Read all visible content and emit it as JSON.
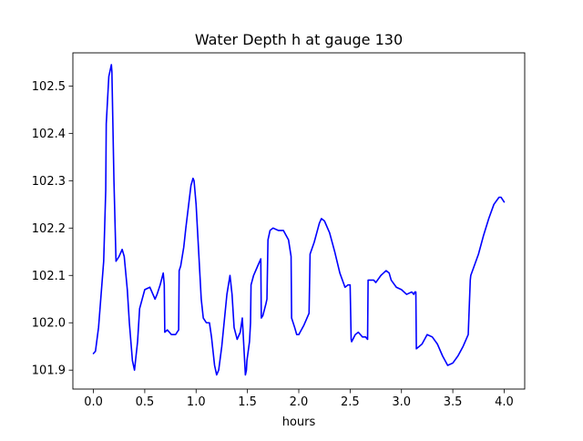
{
  "chart_data": {
    "type": "line",
    "title": "Water Depth h at gauge 130",
    "xlabel": "hours",
    "ylabel": "",
    "xlim": [
      -0.2,
      4.2
    ],
    "ylim": [
      101.86,
      102.57
    ],
    "grid": false,
    "xticks": [
      0.0,
      0.5,
      1.0,
      1.5,
      2.0,
      2.5,
      3.0,
      3.5,
      4.0
    ],
    "xtick_labels": [
      "0.0",
      "0.5",
      "1.0",
      "1.5",
      "2.0",
      "2.5",
      "3.0",
      "3.5",
      "4.0"
    ],
    "yticks": [
      101.9,
      102.0,
      102.1,
      102.2,
      102.3,
      102.4,
      102.5
    ],
    "ytick_labels": [
      "101.9",
      "102.0",
      "102.1",
      "102.2",
      "102.3",
      "102.4",
      "102.5"
    ],
    "series": [
      {
        "color": "#0000ff",
        "x": [
          0.0,
          0.02,
          0.05,
          0.1,
          0.12,
          0.125,
          0.15,
          0.175,
          0.18,
          0.2,
          0.22,
          0.25,
          0.28,
          0.3,
          0.33,
          0.35,
          0.38,
          0.4,
          0.43,
          0.45,
          0.5,
          0.55,
          0.6,
          0.62,
          0.65,
          0.68,
          0.69,
          0.695,
          0.72,
          0.76,
          0.8,
          0.83,
          0.835,
          0.85,
          0.88,
          0.9,
          0.95,
          0.97,
          0.98,
          1.0,
          1.02,
          1.05,
          1.07,
          1.1,
          1.13,
          1.15,
          1.18,
          1.2,
          1.22,
          1.25,
          1.3,
          1.33,
          1.35,
          1.37,
          1.4,
          1.43,
          1.45,
          1.48,
          1.49,
          1.495,
          1.52,
          1.53,
          1.535,
          1.56,
          1.6,
          1.62,
          1.63,
          1.635,
          1.65,
          1.68,
          1.69,
          1.7,
          1.72,
          1.75,
          1.8,
          1.85,
          1.9,
          1.925,
          1.93,
          1.96,
          1.98,
          2.0,
          2.05,
          2.1,
          2.11,
          2.15,
          2.2,
          2.22,
          2.25,
          2.3,
          2.35,
          2.4,
          2.45,
          2.48,
          2.5,
          2.51,
          2.515,
          2.55,
          2.58,
          2.62,
          2.65,
          2.67,
          2.675,
          2.7,
          2.73,
          2.75,
          2.8,
          2.85,
          2.88,
          2.9,
          2.95,
          3.0,
          3.05,
          3.1,
          3.12,
          3.13,
          3.14,
          3.145,
          3.2,
          3.25,
          3.3,
          3.35,
          3.4,
          3.45,
          3.5,
          3.55,
          3.6,
          3.65,
          3.67,
          3.675,
          3.7,
          3.75,
          3.8,
          3.85,
          3.9,
          3.95,
          3.97,
          4.0
        ],
        "values": [
          101.935,
          101.94,
          101.99,
          102.13,
          102.28,
          102.42,
          102.52,
          102.545,
          102.53,
          102.3,
          102.13,
          102.14,
          102.155,
          102.14,
          102.07,
          102.0,
          101.92,
          101.9,
          101.96,
          102.03,
          102.07,
          102.075,
          102.05,
          102.06,
          102.08,
          102.105,
          102.08,
          101.98,
          101.985,
          101.975,
          101.975,
          101.985,
          102.11,
          102.12,
          102.16,
          102.2,
          102.29,
          102.305,
          102.3,
          102.25,
          102.17,
          102.05,
          102.01,
          102.0,
          102.0,
          101.97,
          101.91,
          101.89,
          101.9,
          101.95,
          102.06,
          102.1,
          102.06,
          101.99,
          101.965,
          101.98,
          102.01,
          101.89,
          101.9,
          101.92,
          101.96,
          102.0,
          102.08,
          102.1,
          102.12,
          102.13,
          102.135,
          102.01,
          102.015,
          102.04,
          102.05,
          102.175,
          102.195,
          102.2,
          102.195,
          102.195,
          102.175,
          102.14,
          102.01,
          101.99,
          101.975,
          101.975,
          101.995,
          102.02,
          102.145,
          102.17,
          102.21,
          102.22,
          102.215,
          102.19,
          102.15,
          102.105,
          102.075,
          102.08,
          102.08,
          101.965,
          101.96,
          101.975,
          101.98,
          101.97,
          101.97,
          101.965,
          102.09,
          102.09,
          102.09,
          102.085,
          102.1,
          102.11,
          102.105,
          102.09,
          102.075,
          102.07,
          102.06,
          102.065,
          102.06,
          102.065,
          102.065,
          101.945,
          101.955,
          101.975,
          101.97,
          101.955,
          101.93,
          101.91,
          101.915,
          101.93,
          101.95,
          101.975,
          102.09,
          102.1,
          102.115,
          102.145,
          102.185,
          102.22,
          102.25,
          102.265,
          102.265,
          102.255
        ]
      }
    ]
  }
}
